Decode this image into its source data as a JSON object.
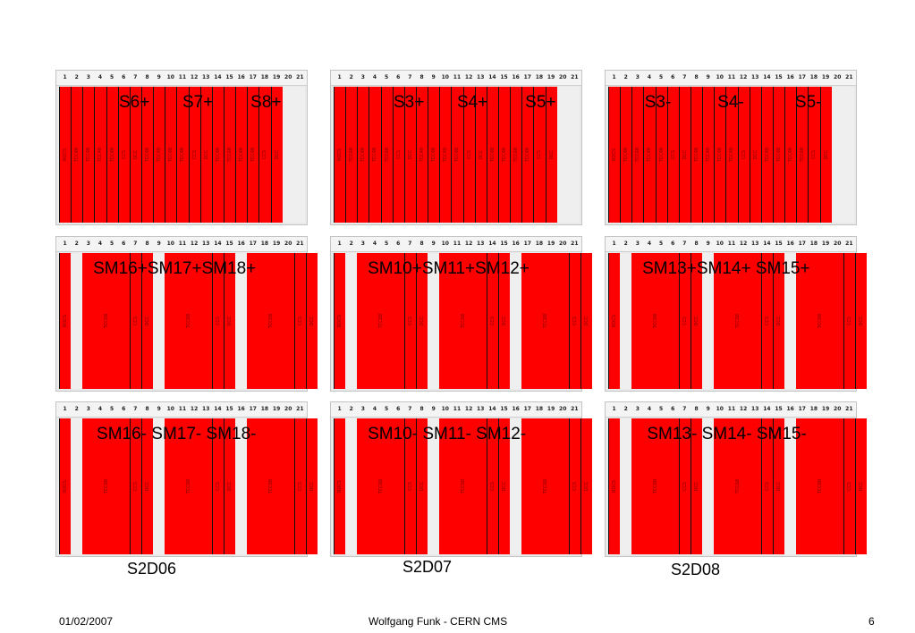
{
  "slot_numbers": [
    "1",
    "2",
    "3",
    "4",
    "5",
    "6",
    "7",
    "8",
    "9",
    "10",
    "11",
    "12",
    "13",
    "14",
    "15",
    "16",
    "17",
    "18",
    "19",
    "20",
    "21"
  ],
  "colors": {
    "board": "#ff0000",
    "empty": "#efefef",
    "header": "#f4f4f4"
  },
  "crates": [
    {
      "overlay": [
        {
          "text": "S6+",
          "slot": 5.1
        },
        {
          "text": "S7+",
          "slot": 10.5
        },
        {
          "text": "S8+",
          "slot": 16.3
        }
      ],
      "boards": [
        {
          "label": "ROCS",
          "slots": 1
        },
        {
          "label": "TCC48",
          "slots": 1
        },
        {
          "label": "TCC48",
          "slots": 1
        },
        {
          "label": "TCC48",
          "slots": 1
        },
        {
          "label": "TCC48",
          "slots": 1
        },
        {
          "label": "CCS",
          "slots": 1
        },
        {
          "label": "DCC",
          "slots": 1
        },
        {
          "label": "TCC48",
          "slots": 1
        },
        {
          "label": "TCC48",
          "slots": 1
        },
        {
          "label": "TCC48",
          "slots": 1
        },
        {
          "label": "TCC48",
          "slots": 1
        },
        {
          "label": "CCS",
          "slots": 1
        },
        {
          "label": "DCC",
          "slots": 1
        },
        {
          "label": "TCC48",
          "slots": 1
        },
        {
          "label": "TCC48",
          "slots": 1
        },
        {
          "label": "TCC48",
          "slots": 1
        },
        {
          "label": "TCC48",
          "slots": 1
        },
        {
          "label": "CCS",
          "slots": 1
        },
        {
          "label": "DCC",
          "slots": 1
        }
      ]
    },
    {
      "overlay": [
        {
          "text": "S3+",
          "slot": 5.1
        },
        {
          "text": "S4+",
          "slot": 10.5
        },
        {
          "text": "S5+",
          "slot": 16.3
        }
      ],
      "boards": [
        {
          "label": "ROCS",
          "slots": 1
        },
        {
          "label": "TCC48",
          "slots": 1
        },
        {
          "label": "TCC48",
          "slots": 1
        },
        {
          "label": "TCC48",
          "slots": 1
        },
        {
          "label": "TCC48",
          "slots": 1
        },
        {
          "label": "CCS",
          "slots": 1
        },
        {
          "label": "DCC",
          "slots": 1
        },
        {
          "label": "TCC48",
          "slots": 1
        },
        {
          "label": "TCC48",
          "slots": 1
        },
        {
          "label": "TCC48",
          "slots": 1
        },
        {
          "label": "TCC48",
          "slots": 1
        },
        {
          "label": "CCS",
          "slots": 1
        },
        {
          "label": "DCC",
          "slots": 1
        },
        {
          "label": "TCC48",
          "slots": 1
        },
        {
          "label": "TCC48",
          "slots": 1
        },
        {
          "label": "TCC48",
          "slots": 1
        },
        {
          "label": "TCC48",
          "slots": 1
        },
        {
          "label": "CCS",
          "slots": 1
        },
        {
          "label": "DCC",
          "slots": 1
        }
      ]
    },
    {
      "overlay": [
        {
          "text": "S3-",
          "slot": 3.1
        },
        {
          "text": "S4-",
          "slot": 9.3
        },
        {
          "text": "S5-",
          "slot": 15.9
        }
      ],
      "boards": [
        {
          "label": "ROCS",
          "slots": 1
        },
        {
          "label": "TCC48",
          "slots": 1
        },
        {
          "label": "TCC48",
          "slots": 1
        },
        {
          "label": "TCC48",
          "slots": 1
        },
        {
          "label": "TCC48",
          "slots": 1
        },
        {
          "label": "CCS",
          "slots": 1
        },
        {
          "label": "DCC",
          "slots": 1
        },
        {
          "label": "TCC48",
          "slots": 1
        },
        {
          "label": "TCC48",
          "slots": 1
        },
        {
          "label": "TCC48",
          "slots": 1
        },
        {
          "label": "TCC48",
          "slots": 1
        },
        {
          "label": "CCS",
          "slots": 1
        },
        {
          "label": "DCC",
          "slots": 1
        },
        {
          "label": "TCC48",
          "slots": 1
        },
        {
          "label": "TCC48",
          "slots": 1
        },
        {
          "label": "TCC48",
          "slots": 1
        },
        {
          "label": "TCC48",
          "slots": 1
        },
        {
          "label": "CCS",
          "slots": 1
        },
        {
          "label": "DCC",
          "slots": 1
        }
      ]
    },
    {
      "overlay": [
        {
          "text": "SM16+SM17+SM18+",
          "slot": 2.9
        }
      ],
      "boards": [
        {
          "label": "ROCS",
          "slots": 1
        },
        {
          "label": "",
          "slots": 1,
          "empty": true
        },
        {
          "label": "TCC68",
          "slots": 4
        },
        {
          "label": "CCS",
          "slots": 1
        },
        {
          "label": "DCC",
          "slots": 1
        },
        {
          "label": "",
          "slots": 1,
          "empty": true
        },
        {
          "label": "TCC68",
          "slots": 4
        },
        {
          "label": "CCS",
          "slots": 1
        },
        {
          "label": "DCC",
          "slots": 1
        },
        {
          "label": "",
          "slots": 1,
          "empty": true
        },
        {
          "label": "TCC68",
          "slots": 4
        },
        {
          "label": "CCS",
          "slots": 1
        },
        {
          "label": "DCC",
          "slots": 1
        }
      ]
    },
    {
      "overlay": [
        {
          "text": "SM10+SM11+SM12+",
          "slot": 2.9
        }
      ],
      "boards": [
        {
          "label": "ROCS",
          "slots": 1
        },
        {
          "label": "",
          "slots": 1,
          "empty": true
        },
        {
          "label": "TCC68",
          "slots": 4
        },
        {
          "label": "CCS",
          "slots": 1
        },
        {
          "label": "DCC",
          "slots": 1
        },
        {
          "label": "",
          "slots": 1,
          "empty": true
        },
        {
          "label": "TCC68",
          "slots": 4
        },
        {
          "label": "CCS",
          "slots": 1
        },
        {
          "label": "DCC",
          "slots": 1
        },
        {
          "label": "",
          "slots": 1,
          "empty": true
        },
        {
          "label": "TCC68",
          "slots": 4
        },
        {
          "label": "CCS",
          "slots": 1
        },
        {
          "label": "DCC",
          "slots": 1
        }
      ]
    },
    {
      "overlay": [
        {
          "text": "SM13+SM14+ SM15+",
          "slot": 2.9
        }
      ],
      "boards": [
        {
          "label": "ROCS",
          "slots": 1
        },
        {
          "label": "",
          "slots": 1,
          "empty": true
        },
        {
          "label": "TCC68",
          "slots": 4
        },
        {
          "label": "CCS",
          "slots": 1
        },
        {
          "label": "DCC",
          "slots": 1
        },
        {
          "label": "",
          "slots": 1,
          "empty": true
        },
        {
          "label": "TCC68",
          "slots": 4
        },
        {
          "label": "CCS",
          "slots": 1
        },
        {
          "label": "DCC",
          "slots": 1
        },
        {
          "label": "",
          "slots": 1,
          "empty": true
        },
        {
          "label": "TCC68",
          "slots": 4
        },
        {
          "label": "CCS",
          "slots": 1
        },
        {
          "label": "DCC",
          "slots": 1
        }
      ]
    },
    {
      "overlay": [
        {
          "text": "SM16- SM17- SM18-",
          "slot": 3.2
        }
      ],
      "boards": [
        {
          "label": "ROCS",
          "slots": 1
        },
        {
          "label": "",
          "slots": 1,
          "empty": true
        },
        {
          "label": "TCC68",
          "slots": 4
        },
        {
          "label": "CCS",
          "slots": 1
        },
        {
          "label": "DCC",
          "slots": 1
        },
        {
          "label": "",
          "slots": 1,
          "empty": true
        },
        {
          "label": "TCC68",
          "slots": 4
        },
        {
          "label": "CCS",
          "slots": 1
        },
        {
          "label": "DCC",
          "slots": 1
        },
        {
          "label": "",
          "slots": 1,
          "empty": true
        },
        {
          "label": "TCC68",
          "slots": 4
        },
        {
          "label": "CCS",
          "slots": 1
        },
        {
          "label": "DCC",
          "slots": 1
        }
      ]
    },
    {
      "overlay": [
        {
          "text": "SM10- SM11- SM12-",
          "slot": 2.9
        }
      ],
      "boards": [
        {
          "label": "ROCS",
          "slots": 1
        },
        {
          "label": "",
          "slots": 1,
          "empty": true
        },
        {
          "label": "TCC68",
          "slots": 4
        },
        {
          "label": "CCS",
          "slots": 1
        },
        {
          "label": "DCC",
          "slots": 1
        },
        {
          "label": "",
          "slots": 1,
          "empty": true
        },
        {
          "label": "TCC68",
          "slots": 4
        },
        {
          "label": "CCS",
          "slots": 1
        },
        {
          "label": "DCC",
          "slots": 1
        },
        {
          "label": "",
          "slots": 1,
          "empty": true
        },
        {
          "label": "TCC68",
          "slots": 4
        },
        {
          "label": "CCS",
          "slots": 1
        },
        {
          "label": "DCC",
          "slots": 1
        }
      ]
    },
    {
      "overlay": [
        {
          "text": "SM13- SM14- SM15-",
          "slot": 3.3
        }
      ],
      "boards": [
        {
          "label": "ROCS",
          "slots": 1
        },
        {
          "label": "",
          "slots": 1,
          "empty": true
        },
        {
          "label": "TCC68",
          "slots": 4
        },
        {
          "label": "CCS",
          "slots": 1
        },
        {
          "label": "DCC",
          "slots": 1
        },
        {
          "label": "",
          "slots": 1,
          "empty": true
        },
        {
          "label": "TCC68",
          "slots": 4
        },
        {
          "label": "CCS",
          "slots": 1
        },
        {
          "label": "DCC",
          "slots": 1
        },
        {
          "label": "",
          "slots": 1,
          "empty": true
        },
        {
          "label": "TCC68",
          "slots": 4
        },
        {
          "label": "CCS",
          "slots": 1
        },
        {
          "label": "DCC",
          "slots": 1
        }
      ]
    }
  ],
  "crate_names": [
    "S2D06",
    "S2D07",
    "S2D08"
  ],
  "footer": {
    "date": "01/02/2007",
    "author": "Wolfgang Funk - CERN  CMS",
    "page": "6"
  }
}
